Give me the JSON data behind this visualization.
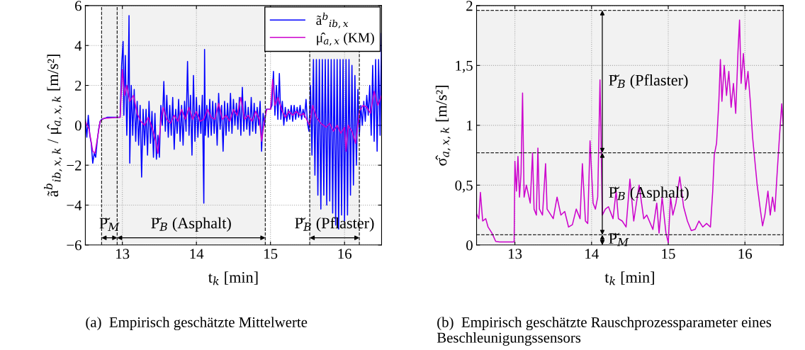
{
  "chart_data": [
    {
      "type": "line",
      "xlabel": "t$_{k}$ [min]",
      "ylabel": "ã$^{b}$$_{ib,x,k}$ / μ̂$_{a,x,k}$ [m/s²]",
      "xlim": [
        12.5,
        16.5
      ],
      "xticks": [
        13,
        14,
        15,
        16
      ],
      "ylim": [
        -6,
        6
      ],
      "yticks": [
        {
          "value": -6,
          "label": "−6"
        },
        {
          "value": -4,
          "label": "−4"
        },
        {
          "value": -2,
          "label": "−2"
        },
        0,
        2,
        4,
        6
      ],
      "grid": true,
      "legend": "top right",
      "series": [
        {
          "name": "ã$^{b}$$_{ib,x}$",
          "color": "#0000ff",
          "x": [
            12.5,
            12.52,
            12.54,
            12.56,
            12.58,
            12.6,
            12.62,
            12.64,
            12.66,
            12.68,
            12.7,
            12.72,
            12.8,
            12.95,
            12.97,
            12.99,
            13.01,
            13.02,
            13.04,
            13.06,
            13.08,
            13.09,
            13.1,
            13.12,
            13.14,
            13.16,
            13.18,
            13.2,
            13.22,
            13.24,
            13.26,
            13.28,
            13.3,
            13.32,
            13.34,
            13.36,
            13.38,
            13.4,
            13.42,
            13.44,
            13.46,
            13.48,
            13.5,
            13.52,
            13.54,
            13.56,
            13.58,
            13.6,
            13.62,
            13.64,
            13.66,
            13.68,
            13.7,
            13.72,
            13.74,
            13.76,
            13.78,
            13.8,
            13.82,
            13.84,
            13.86,
            13.88,
            13.9,
            13.92,
            13.94,
            13.96,
            13.98,
            14.0,
            14.02,
            14.04,
            14.06,
            14.08,
            14.1,
            14.11,
            14.12,
            14.14,
            14.16,
            14.18,
            14.2,
            14.22,
            14.24,
            14.26,
            14.28,
            14.3,
            14.32,
            14.34,
            14.36,
            14.38,
            14.4,
            14.42,
            14.44,
            14.46,
            14.48,
            14.5,
            14.52,
            14.54,
            14.56,
            14.58,
            14.6,
            14.62,
            14.64,
            14.66,
            14.68,
            14.7,
            14.72,
            14.74,
            14.76,
            14.78,
            14.8,
            14.82,
            14.84,
            14.86,
            14.88,
            14.9,
            14.92,
            14.94,
            15.0,
            15.02,
            15.04,
            15.06,
            15.08,
            15.1,
            15.12,
            15.14,
            15.16,
            15.18,
            15.2,
            15.22,
            15.24,
            15.26,
            15.28,
            15.3,
            15.32,
            15.34,
            15.36,
            15.38,
            15.4,
            15.42,
            15.44,
            15.46,
            15.48,
            15.5,
            15.52,
            15.54,
            15.56,
            15.58,
            15.6,
            15.62,
            15.64,
            15.66,
            15.68,
            15.7,
            15.72,
            15.74,
            15.76,
            15.78,
            15.8,
            15.82,
            15.84,
            15.86,
            15.88,
            15.9,
            15.92,
            15.94,
            15.96,
            15.98,
            16.0,
            16.02,
            16.04,
            16.06,
            16.08,
            16.1,
            16.12,
            16.14,
            16.16,
            16.18,
            16.2,
            16.22,
            16.24,
            16.26,
            16.28,
            16.3,
            16.32,
            16.34,
            16.36,
            16.38,
            16.4,
            16.42,
            16.44,
            16.46,
            16.48,
            16.5
          ],
          "values": [
            0.3,
            -0.6,
            0.5,
            -0.5,
            -0.9,
            -1.9,
            -1.4,
            -1.6,
            -0.8,
            -0.2,
            0.2,
            0.3,
            0.4,
            0.4,
            0.4,
            3.0,
            4.2,
            0.5,
            3.5,
            -0.5,
            2.5,
            5.5,
            -1.9,
            2.0,
            -0.5,
            1.8,
            -0.8,
            1.2,
            -1.0,
            1.0,
            -2.6,
            0.8,
            -1.0,
            0.8,
            -1.5,
            1.2,
            -0.9,
            0.7,
            -1.6,
            0.6,
            -1.7,
            -0.5,
            -1.6,
            1.0,
            0.0,
            2.2,
            -0.3,
            1.5,
            -0.6,
            1.0,
            -0.5,
            1.4,
            -1.2,
            0.8,
            -0.4,
            1.3,
            -0.8,
            1.0,
            -1.0,
            1.2,
            -0.3,
            3.2,
            -0.5,
            1.5,
            -1.5,
            2.5,
            -0.8,
            1.4,
            -0.6,
            1.0,
            -0.4,
            1.5,
            -3.9,
            3.8,
            -0.5,
            1.0,
            -0.6,
            1.3,
            -0.5,
            1.2,
            -0.4,
            1.1,
            -1.0,
            1.6,
            -0.2,
            1.0,
            -1.3,
            1.2,
            -0.5,
            1.1,
            -0.3,
            1.6,
            -0.4,
            1.3,
            0.0,
            1.1,
            -0.2,
            1.4,
            -0.5,
            1.9,
            -0.3,
            1.2,
            -0.2,
            0.9,
            -0.5,
            1.4,
            -0.3,
            1.1,
            -0.4,
            0.9,
            0.0,
            1.2,
            -1.3,
            0.6,
            0.0,
            0.8,
            0.8,
            1.0,
            2.7,
            0.5,
            2.0,
            0.3,
            2.6,
            0.3,
            1.2,
            0.0,
            0.9,
            0.2,
            0.8,
            0.3,
            1.0,
            0.2,
            1.0,
            0.3,
            0.9,
            0.4,
            1.0,
            0.3,
            0.8,
            0.4,
            1.3,
            0.1,
            -0.3,
            2.0,
            -1.5,
            3.3,
            -2.5,
            3.3,
            -3.5,
            3.3,
            -4.2,
            3.3,
            -3.5,
            3.3,
            -4.0,
            3.3,
            -3.8,
            3.3,
            -4.4,
            3.3,
            -5.0,
            3.3,
            -5.2,
            3.3,
            -4.5,
            3.3,
            -4.8,
            3.3,
            -4.5,
            3.3,
            -3.5,
            3.0,
            -3.0,
            2.5,
            -2.0,
            1.8,
            -0.5,
            1.0,
            0.0,
            1.2,
            0.2,
            1.5,
            0.5,
            2.0,
            -0.5,
            3.0,
            -0.8,
            3.3,
            -1.3,
            3.3,
            -0.5,
            4.6
          ]
        },
        {
          "name": "μ̂$_{a,x}$ (KM)",
          "color": "#cc00cc",
          "x": [
            12.5,
            12.55,
            12.6,
            12.63,
            12.67,
            12.7,
            12.75,
            12.97,
            13.0,
            13.03,
            13.06,
            13.1,
            13.15,
            13.2,
            13.25,
            13.3,
            13.35,
            13.4,
            13.45,
            13.48,
            13.52,
            13.55,
            13.6,
            13.65,
            13.7,
            13.75,
            13.8,
            13.85,
            13.9,
            13.95,
            14.0,
            14.05,
            14.1,
            14.15,
            14.2,
            14.25,
            14.3,
            14.35,
            14.4,
            14.45,
            14.5,
            14.55,
            14.6,
            14.65,
            14.7,
            14.75,
            14.8,
            14.85,
            14.88,
            14.92,
            14.95,
            15.0,
            15.03,
            15.06,
            15.1,
            15.15,
            15.2,
            15.25,
            15.3,
            15.35,
            15.4,
            15.45,
            15.5,
            15.53,
            15.57,
            15.62,
            15.68,
            15.75,
            15.8,
            15.85,
            15.9,
            15.95,
            16.0,
            16.02,
            16.05,
            16.1,
            16.15,
            16.2,
            16.25,
            16.3,
            16.35,
            16.4,
            16.45,
            16.5
          ],
          "values": [
            0.2,
            -0.2,
            -1.3,
            -1.4,
            -0.5,
            0.2,
            0.35,
            0.4,
            2.8,
            1.5,
            2.0,
            1.2,
            1.5,
            0.6,
            0.2,
            0.0,
            0.4,
            -0.1,
            -0.8,
            -1.4,
            0.2,
            0.9,
            0.3,
            0.1,
            0.5,
            0.2,
            0.8,
            0.3,
            0.9,
            0.3,
            0.7,
            0.2,
            0.3,
            0.8,
            0.4,
            0.3,
            1.1,
            0.3,
            0.5,
            0.2,
            0.8,
            0.5,
            1.4,
            0.3,
            0.5,
            0.2,
            0.7,
            0.3,
            -0.8,
            0.3,
            0.8,
            0.8,
            2.3,
            1.0,
            1.4,
            0.8,
            0.4,
            0.7,
            0.5,
            0.7,
            0.5,
            0.6,
            0.2,
            0.0,
            1.0,
            0.4,
            0.1,
            -0.1,
            0.1,
            -0.3,
            0.0,
            -0.4,
            -0.1,
            -1.3,
            0.0,
            -0.3,
            -0.9,
            0.7,
            1.0,
            0.9,
            0.6,
            1.7,
            1.0,
            1.5
          ]
        }
      ],
      "ref_lines": [
        {
          "axis": "x",
          "value": 12.72,
          "line_style": "dashed"
        },
        {
          "axis": "x",
          "value": 12.93,
          "line_style": "dashed"
        },
        {
          "axis": "x",
          "value": 14.93,
          "line_style": "dashed"
        },
        {
          "axis": "x",
          "value": 15.53,
          "line_style": "dashed"
        },
        {
          "axis": "x",
          "value": 16.2,
          "line_style": "dashed"
        }
      ],
      "bands": [
        {
          "axis": "x",
          "from": 12.72,
          "to": 12.93,
          "label": "P̆$_{M}$",
          "color": "#f2f2f2"
        },
        {
          "axis": "x",
          "from": 12.93,
          "to": 14.93,
          "label": "P̆$_{B}$ (Asphalt)",
          "color": "#f2f2f2"
        },
        {
          "axis": "x",
          "from": 15.53,
          "to": 16.2,
          "label": "P̆$_{B}$ (Pflaster)",
          "color": "#f2f2f2"
        }
      ],
      "annotations": [
        "(a)  Empirisch geschätzte Mittelwerte"
      ]
    },
    {
      "type": "line",
      "xlabel": "t$_{k}$ [min]",
      "ylabel": "σ̂$_{a,x,k}$ [m/s²]",
      "xlim": [
        12.5,
        16.5
      ],
      "xticks": [
        13,
        14,
        15,
        16
      ],
      "ylim": [
        0,
        2
      ],
      "yticks": [
        0,
        {
          "value": 0.5,
          "label": "0,5"
        },
        1,
        {
          "value": 1.5,
          "label": "1,5"
        },
        2
      ],
      "grid": true,
      "series": [
        {
          "color": "#cc00cc",
          "x": [
            12.5,
            12.53,
            12.55,
            12.58,
            12.62,
            12.65,
            12.7,
            12.75,
            12.8,
            12.99,
            13.0,
            13.02,
            13.04,
            13.06,
            13.08,
            13.1,
            13.12,
            13.15,
            13.2,
            13.23,
            13.25,
            13.28,
            13.3,
            13.32,
            13.36,
            13.4,
            13.42,
            13.5,
            13.55,
            13.6,
            13.65,
            13.7,
            13.75,
            13.8,
            13.85,
            13.88,
            13.92,
            13.95,
            13.98,
            14.02,
            14.05,
            14.08,
            14.11,
            14.14,
            14.18,
            14.22,
            14.28,
            14.32,
            14.35,
            14.4,
            14.45,
            14.5,
            14.55,
            14.62,
            14.68,
            14.72,
            14.8,
            14.85,
            14.88,
            14.92,
            14.97,
            15.0,
            15.03,
            15.06,
            15.1,
            15.15,
            15.2,
            15.25,
            15.3,
            15.35,
            15.4,
            15.45,
            15.5,
            15.55,
            15.58,
            15.6,
            15.63,
            15.66,
            15.68,
            15.7,
            15.73,
            15.76,
            15.79,
            15.82,
            15.85,
            15.88,
            15.91,
            15.93,
            15.95,
            15.98,
            16.01,
            16.04,
            16.07,
            16.1,
            16.13,
            16.16,
            16.2,
            16.23,
            16.26,
            16.3,
            16.33,
            16.36,
            16.39,
            16.42,
            16.45,
            16.48,
            16.5
          ],
          "values": [
            0.26,
            0.22,
            0.44,
            0.2,
            0.22,
            0.15,
            0.1,
            0.03,
            0.025,
            0.025,
            0.7,
            0.45,
            0.74,
            0.4,
            0.6,
            1.27,
            0.4,
            0.5,
            0.35,
            0.77,
            0.3,
            0.25,
            0.81,
            0.3,
            0.25,
            0.68,
            0.3,
            0.22,
            0.4,
            0.25,
            0.28,
            0.15,
            0.17,
            0.3,
            0.22,
            0.68,
            0.2,
            0.18,
            0.87,
            0.35,
            0.3,
            0.4,
            1.38,
            0.25,
            0.3,
            0.32,
            0.22,
            0.45,
            0.22,
            0.2,
            0.15,
            0.55,
            0.2,
            0.5,
            0.22,
            0.25,
            0.13,
            0.35,
            0.1,
            0.4,
            0.1,
            0.02,
            0.4,
            0.25,
            0.35,
            0.57,
            0.32,
            0.2,
            0.12,
            0.13,
            0.2,
            0.15,
            0.18,
            0.15,
            0.45,
            0.75,
            0.85,
            1.2,
            1.55,
            1.2,
            1.5,
            1.25,
            1.45,
            1.15,
            1.35,
            1.1,
            1.62,
            1.88,
            1.35,
            1.6,
            1.3,
            1.45,
            1.2,
            0.9,
            0.7,
            0.5,
            0.3,
            0.16,
            0.25,
            0.45,
            0.25,
            0.4,
            0.28,
            0.6,
            0.9,
            1.18,
            1.0
          ]
        }
      ],
      "ref_lines": [
        {
          "axis": "y",
          "value": 1.96,
          "line_style": "dashed"
        },
        {
          "axis": "y",
          "value": 0.77,
          "line_style": "dashed"
        },
        {
          "axis": "y",
          "value": 0.085,
          "line_style": "dashed"
        }
      ],
      "bands": [
        {
          "axis": "y",
          "from": 0.77,
          "to": 1.96,
          "label": "P̆$_{B}$ (Pflaster)",
          "color": "#f2f2f2"
        },
        {
          "axis": "y",
          "from": 0.085,
          "to": 0.77,
          "label": "P̆$_{B}$ (Asphalt)",
          "color": "#f2f2f2"
        },
        {
          "axis": "y",
          "from": 0.0,
          "to": 0.085,
          "label": "P̆$_{M}$",
          "color": "#f2f2f2"
        }
      ],
      "annotations": [
        "(b)  Empirisch geschätzte Rauschprozessparameter eines Beschleunigungssensors"
      ]
    }
  ]
}
